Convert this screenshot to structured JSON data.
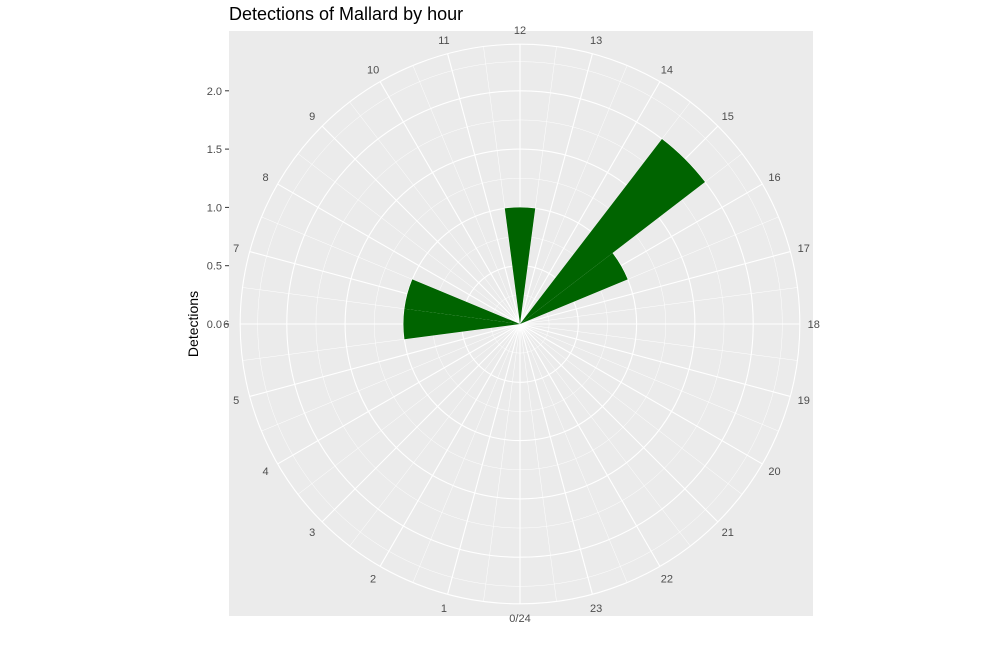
{
  "chart_data": {
    "type": "bar",
    "coord": "polar",
    "title": "Detections of Mallard by hour",
    "xlabel": "",
    "ylabel": "Detections",
    "categories": [
      "0/24",
      "1",
      "2",
      "3",
      "4",
      "5",
      "6",
      "7",
      "8",
      "9",
      "10",
      "11",
      "12",
      "13",
      "14",
      "15",
      "16",
      "17",
      "18",
      "19",
      "20",
      "21",
      "22",
      "23"
    ],
    "values": [
      0,
      0,
      0,
      0,
      0,
      0,
      1,
      1,
      0,
      0,
      0,
      0,
      1,
      0,
      0,
      2,
      1,
      0,
      0,
      0,
      0,
      0,
      0,
      0
    ],
    "ylim": [
      0,
      2.4
    ],
    "yticks": [
      0.0,
      0.5,
      1.0,
      1.5,
      2.0
    ],
    "ytick_labels": [
      "0.0",
      "0.5",
      "1.0",
      "1.5",
      "2.0"
    ],
    "bar_color": "#006400",
    "panel_color": "#EBEBEB",
    "grid_color": "#FFFFFF",
    "grid": true
  }
}
